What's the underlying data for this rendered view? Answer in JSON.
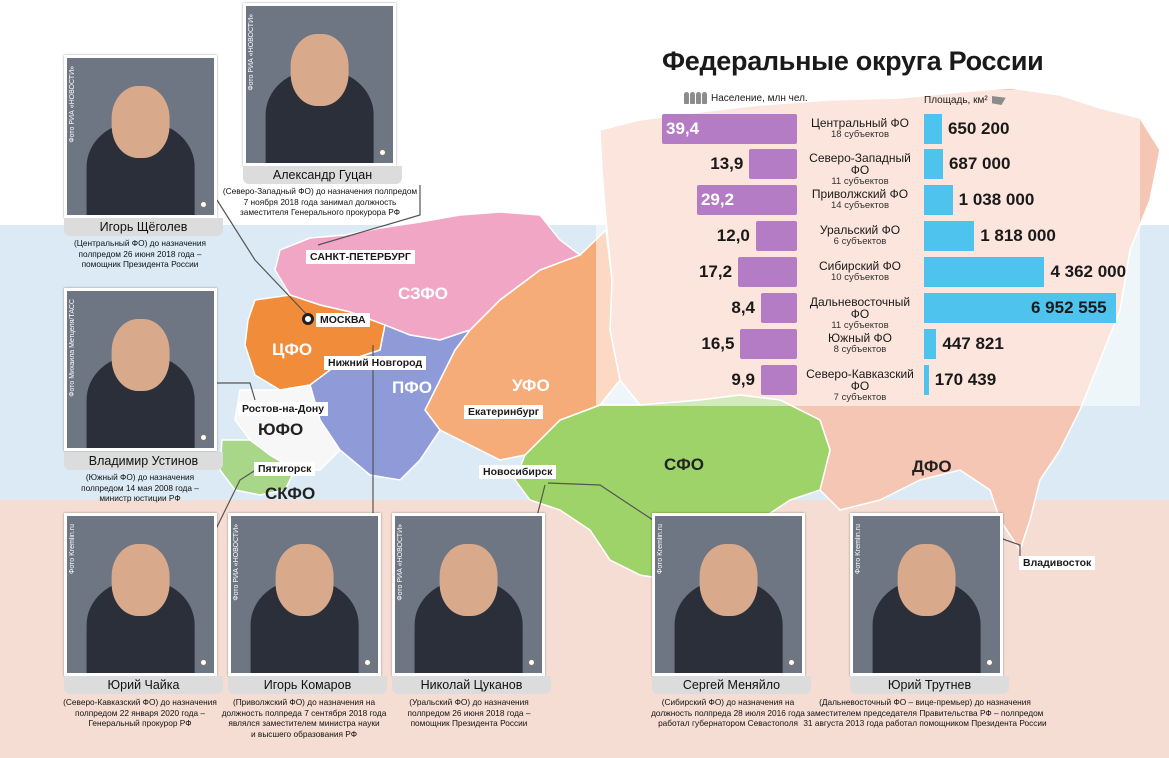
{
  "title": "Федеральные округа России",
  "headers": {
    "population": "Население, млн чел.",
    "area": "Площадь, км²",
    "people_icon": "people-icon",
    "area_icon": "map-flag-icon"
  },
  "districts": [
    {
      "name": "Центральный ФО",
      "subjects": "18 субъектов",
      "population": "39,4",
      "pop_value": 39.4,
      "area": "650 200",
      "area_value": 650200
    },
    {
      "name": "Северо-Западный ФО",
      "subjects": "11 субъектов",
      "population": "13,9",
      "pop_value": 13.9,
      "area": "687 000",
      "area_value": 687000
    },
    {
      "name": "Приволжский ФО",
      "subjects": "14 субъектов",
      "population": "29,2",
      "pop_value": 29.2,
      "area": "1 038 000",
      "area_value": 1038000
    },
    {
      "name": "Уральский ФО",
      "subjects": "6 субъектов",
      "population": "12,0",
      "pop_value": 12.0,
      "area": "1 818 000",
      "area_value": 1818000
    },
    {
      "name": "Сибирский ФО",
      "subjects": "10 субъектов",
      "population": "17,2",
      "pop_value": 17.2,
      "area": "4 362 000",
      "area_value": 4362000
    },
    {
      "name": "Дальневосточный ФО",
      "subjects": "11 субъектов",
      "population": "8,4",
      "pop_value": 8.4,
      "area": "6 952 555",
      "area_value": 6952555
    },
    {
      "name": "Южный ФО",
      "subjects": "8 субъектов",
      "population": "16,5",
      "pop_value": 16.5,
      "area": "447 821",
      "area_value": 447821
    },
    {
      "name": "Северо-Кавказский ФО",
      "subjects": "7 субъектов",
      "population": "9,9",
      "pop_value": 9.9,
      "area": "170 439",
      "area_value": 170439
    }
  ],
  "map": {
    "regions": {
      "szfo": "СЗФО",
      "cfo": "ЦФО",
      "pfo": "ПФО",
      "ufo_ural": "УФО",
      "sfo": "СФО",
      "dfo": "ДФО",
      "yufo": "ЮФО",
      "skfo": "СКФО"
    },
    "cities": {
      "spb": "САНКТ-ПЕТЕРБУРГ",
      "moscow": "МОСКВА",
      "nn": "Нижний Новгород",
      "rostov": "Ростов-на-Дону",
      "pyatigorsk": "Пятигорск",
      "ekb": "Екатеринбург",
      "nsk": "Новосибирск",
      "vladivostok": "Владивосток"
    },
    "colors": {
      "szfo": "#f2a6c6",
      "cfo": "#f08c3a",
      "pfo": "#8f9bd8",
      "ufo_ural": "#f5ac78",
      "sfo": "#9ed36a",
      "dfo": "#f5c6b4",
      "yufo": "#f7f7f7",
      "skfo": "#a9d78a",
      "population_bar": "#b47cc4",
      "area_bar": "#4ec3ee"
    }
  },
  "envoys": [
    {
      "id": "shchegolev",
      "name": "Игорь Щёголев",
      "credit": "Фото РИА «НОВОСТИ»",
      "desc": [
        "(Центральный ФО) до назначения",
        "полпредом 26 июня 2018 года –",
        "помощник Президента России"
      ]
    },
    {
      "id": "gutsan",
      "name": "Александр Гуцан",
      "credit": "Фото РИА «НОВОСТИ»",
      "desc": [
        "(Северо-Западный ФО) до назначения полпредом",
        "7 ноября 2018 года занимал должность",
        "заместителя Генерального прокурора РФ"
      ]
    },
    {
      "id": "ustinov",
      "name": "Владимир Устинов",
      "credit": "Фото Михаила Метцеля/ТАСС",
      "desc": [
        "(Южный ФО) до назначения",
        "полпредом 14 мая 2008 года –",
        "министр юстиции РФ"
      ]
    },
    {
      "id": "chaika",
      "name": "Юрий Чайка",
      "credit": "Фото Kremlin.ru",
      "desc": [
        "(Северо-Кавказский ФО) до назначения",
        "полпредом 22 января 2020 года –",
        "Генеральный прокурор РФ"
      ]
    },
    {
      "id": "komarov",
      "name": "Игорь Комаров",
      "credit": "Фото РИА «НОВОСТИ»",
      "desc": [
        "(Приволжский ФО) до назначения на",
        "должность полпреда 7 сентября 2018 года",
        "являлся заместителем министра науки",
        "и высшего образования РФ"
      ]
    },
    {
      "id": "tsukanov",
      "name": "Николай Цуканов",
      "credit": "Фото РИА «НОВОСТИ»",
      "desc": [
        "(Уральский ФО) до назначения",
        "полпредом 26 июня 2018 года –",
        "помощник Президента России"
      ]
    },
    {
      "id": "menyailo",
      "name": "Сергей Меняйло",
      "credit": "Фото Kremlin.ru",
      "desc": [
        "(Сибирский ФО) до назначения на",
        "должность полпреда 28 июля 2016 года",
        "работал губернатором Севастополя"
      ]
    },
    {
      "id": "trutnev",
      "name": "Юрий Трутнев",
      "credit": "Фото Kremlin.ru",
      "desc": [
        "(Дальневосточный ФО – вице-премьер) до назначения",
        "заместителем председателя Правительства РФ – полпредом",
        "31 августа 2013 года работал помощником Президента России"
      ]
    }
  ]
}
